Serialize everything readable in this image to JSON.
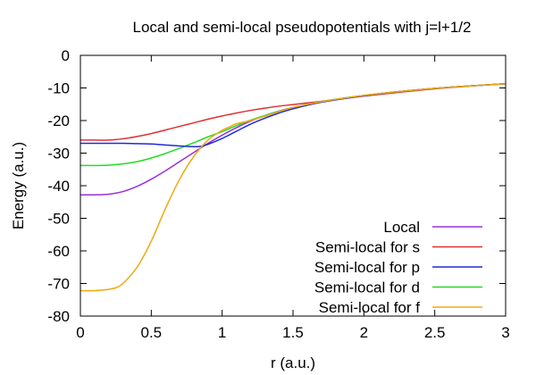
{
  "chart_data": {
    "type": "line",
    "title": "Local and semi-local pseudopotentials with j=l+1/2",
    "xlabel": "r (a.u.)",
    "ylabel": "Energy (a.u.)",
    "xlim": [
      0,
      3
    ],
    "ylim": [
      -80,
      0
    ],
    "xticks": [
      0,
      0.5,
      1,
      1.5,
      2,
      2.5,
      3
    ],
    "xtick_labels": [
      "0",
      "0.5",
      "1",
      "1.5",
      "2",
      "2.5",
      "3"
    ],
    "yticks": [
      0,
      -10,
      -20,
      -30,
      -40,
      -50,
      -60,
      -70,
      -80
    ],
    "ytick_labels": [
      "0",
      "-10",
      "-20",
      "-30",
      "-40",
      "-50",
      "-60",
      "-70",
      "-80"
    ],
    "grid": false,
    "legend_position": "bottom-right",
    "series": [
      {
        "name": "Local",
        "color": "#9b30d9",
        "x": [
          0,
          0.1,
          0.2,
          0.3,
          0.4,
          0.5,
          0.6,
          0.7,
          0.8,
          0.9,
          1.0,
          1.1,
          1.2,
          1.3,
          1.4,
          1.5,
          1.7,
          2.0,
          2.3,
          2.6,
          3.0
        ],
        "y": [
          -42.8,
          -42.8,
          -42.6,
          -41.8,
          -40.2,
          -38.0,
          -35.4,
          -32.6,
          -29.8,
          -27.0,
          -24.5,
          -22.2,
          -20.2,
          -18.5,
          -17.1,
          -16.0,
          -14.2,
          -12.3,
          -10.9,
          -9.8,
          -8.7
        ]
      },
      {
        "name": "Semi-local for s",
        "color": "#e03030",
        "x": [
          0,
          0.1,
          0.2,
          0.3,
          0.4,
          0.5,
          0.6,
          0.7,
          0.8,
          0.9,
          1.0,
          1.1,
          1.2,
          1.3,
          1.4,
          1.5,
          1.7,
          2.0,
          2.3,
          2.6,
          3.0
        ],
        "y": [
          -26.0,
          -26.0,
          -26.0,
          -25.6,
          -24.9,
          -24.0,
          -22.9,
          -21.8,
          -20.7,
          -19.6,
          -18.6,
          -17.7,
          -16.9,
          -16.2,
          -15.6,
          -15.1,
          -14.1,
          -12.5,
          -11.1,
          -9.9,
          -8.7
        ]
      },
      {
        "name": "Semi-local for p",
        "color": "#1c2bd8",
        "x": [
          0,
          0.1,
          0.2,
          0.3,
          0.4,
          0.5,
          0.6,
          0.7,
          0.8,
          0.85,
          0.9,
          1.0,
          1.1,
          1.2,
          1.3,
          1.4,
          1.5,
          1.7,
          2.0,
          2.3,
          2.6,
          3.0
        ],
        "y": [
          -27.0,
          -27.0,
          -27.0,
          -27.0,
          -27.1,
          -27.2,
          -27.5,
          -27.8,
          -28.0,
          -27.9,
          -27.3,
          -25.5,
          -23.3,
          -21.1,
          -19.3,
          -17.7,
          -16.4,
          -14.4,
          -12.4,
          -10.9,
          -9.8,
          -8.7
        ]
      },
      {
        "name": "Semi-local for d",
        "color": "#22dd22",
        "x": [
          0,
          0.1,
          0.2,
          0.3,
          0.4,
          0.5,
          0.6,
          0.7,
          0.8,
          0.9,
          1.0,
          1.1,
          1.2,
          1.3,
          1.4,
          1.5,
          1.7,
          2.0,
          2.3,
          2.6,
          3.0
        ],
        "y": [
          -33.8,
          -33.8,
          -33.7,
          -33.3,
          -32.6,
          -31.5,
          -30.1,
          -28.5,
          -26.8,
          -25.0,
          -23.4,
          -21.6,
          -19.9,
          -18.5,
          -17.2,
          -16.1,
          -14.2,
          -12.3,
          -10.9,
          -9.8,
          -8.7
        ]
      },
      {
        "name": "Semi-local for f",
        "color": "#f0a80e",
        "x": [
          0,
          0.1,
          0.2,
          0.25,
          0.3,
          0.4,
          0.5,
          0.6,
          0.7,
          0.8,
          0.9,
          1.0,
          1.05,
          1.1,
          1.2,
          1.3,
          1.4,
          1.5,
          1.7,
          2.0,
          2.3,
          2.6,
          3.0
        ],
        "y": [
          -72.2,
          -72.2,
          -71.8,
          -71.3,
          -70.0,
          -65.0,
          -57.0,
          -47.0,
          -38.0,
          -31.0,
          -26.0,
          -23.0,
          -22.0,
          -21.0,
          -20.0,
          -18.7,
          -17.3,
          -16.0,
          -14.2,
          -12.3,
          -10.9,
          -9.8,
          -8.7
        ]
      }
    ]
  }
}
